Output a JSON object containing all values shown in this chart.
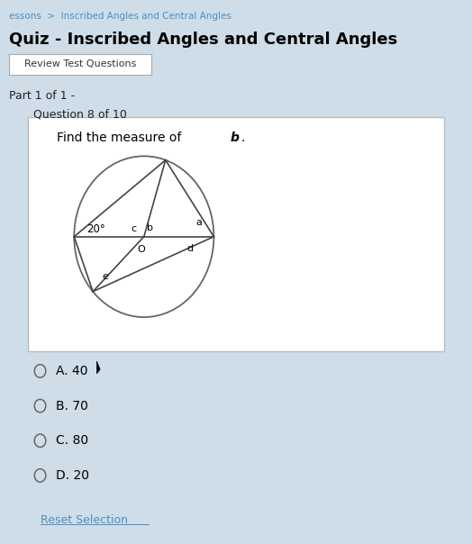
{
  "bg_color": "#cfdde8",
  "title": "Quiz - Inscribed Angles and Central Angles",
  "breadcrumb": "essons  >  Inscribed Angles and Central Angles",
  "button_text": "Review Test Questions",
  "part_text": "Part 1 of 1 -",
  "question_text": "Question 8 of 10",
  "find_text": "Find the measure of ",
  "find_bold": "b",
  "find_text_after": ".",
  "options": [
    "A. 40",
    "B. 70",
    "C. 80",
    "D. 20"
  ],
  "reset_text": "Reset Selection",
  "angle_label": "20°",
  "circle_color": "#666666",
  "line_color": "#444444",
  "panel_edge": "#bbbbbb",
  "link_color": "#4a90c4",
  "breadcrumb_color": "#4a90c4",
  "text_color": "#222222",
  "button_bg": "#ffffff",
  "panel_bg": "#ffffff"
}
